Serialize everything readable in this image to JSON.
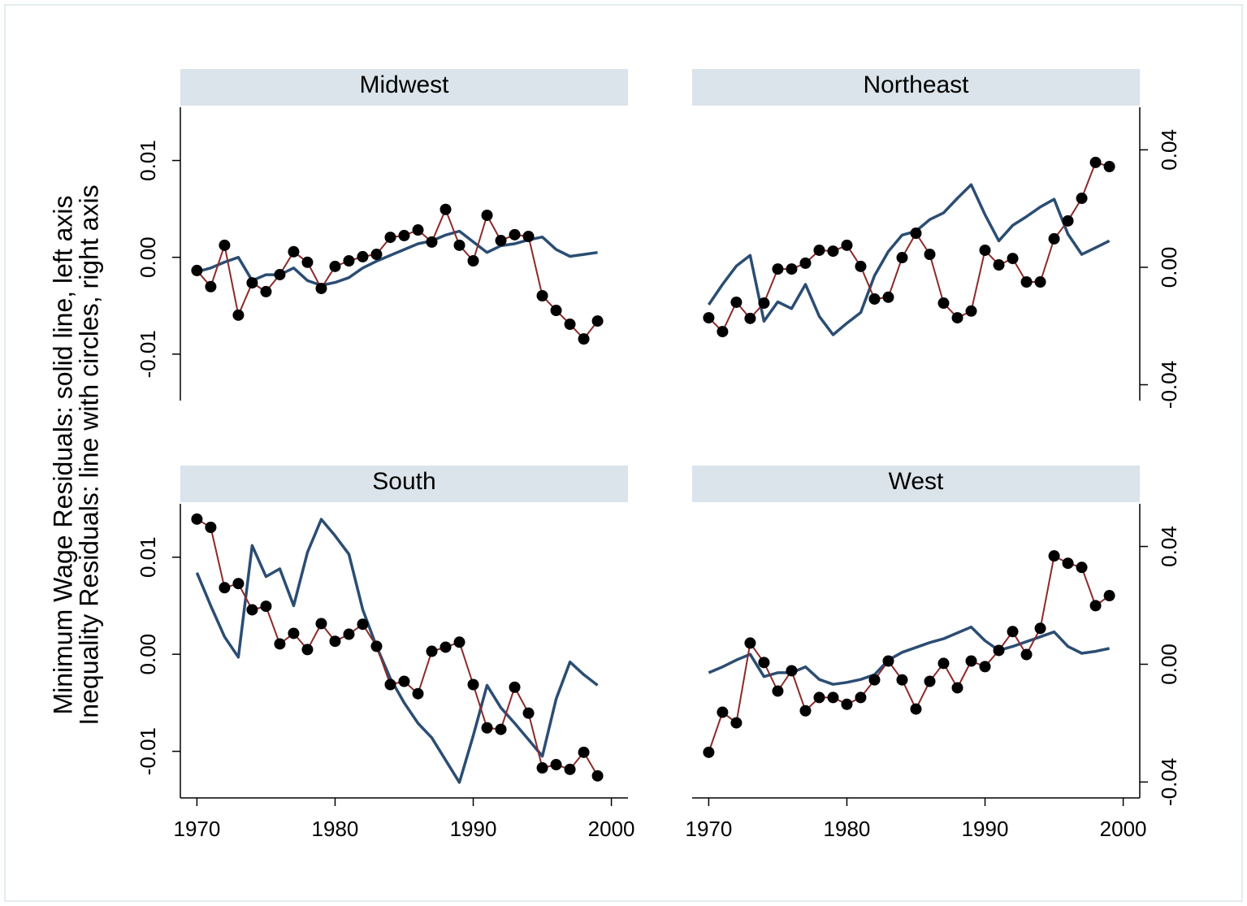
{
  "ylabel": [
    "Minimum Wage Residuals: solid line, left axis",
    "Inequality Residuals: line with circles, right axis"
  ],
  "chart_data": [
    {
      "type": "line",
      "title": "Midwest",
      "x": [
        1970,
        1971,
        1972,
        1973,
        1974,
        1975,
        1976,
        1977,
        1978,
        1979,
        1980,
        1981,
        1982,
        1983,
        1984,
        1985,
        1986,
        1987,
        1988,
        1989,
        1990,
        1991,
        1992,
        1993,
        1994,
        1995,
        1996,
        1997,
        1998,
        1999
      ],
      "xlim": [
        1968.8,
        2001.2
      ],
      "ylim": [
        -0.0148,
        0.0155
      ],
      "y2lim": [
        -0.0454,
        0.0545
      ],
      "yticks": [
        -0.01,
        {
          "value": 0,
          "label": "0.00"
        },
        0.01
      ],
      "series": [
        {
          "color": "#2b4d73",
          "values": [
            -0.0015,
            -0.0011,
            -0.0005,
            0.0,
            -0.0024,
            -0.0018,
            -0.0018,
            -0.0011,
            -0.0024,
            -0.0029,
            -0.0026,
            -0.0021,
            -0.0011,
            -0.0004,
            0.0002,
            0.0008,
            0.0014,
            0.0017,
            0.0023,
            0.0027,
            0.0016,
            0.0005,
            0.0012,
            0.0014,
            0.0018,
            0.0021,
            0.0008,
            0.0001,
            0.0003,
            0.0005
          ]
        },
        {
          "color": "#8b2a2a",
          "marker": "circle",
          "marker_color": "#000000",
          "axis": "y2",
          "values": [
            -0.0011,
            -0.0066,
            0.0075,
            -0.0163,
            -0.0053,
            -0.0083,
            -0.0025,
            0.0053,
            0.0017,
            -0.0072,
            0.0003,
            0.0022,
            0.0036,
            0.0044,
            0.0102,
            0.0108,
            0.0127,
            0.0086,
            0.0197,
            0.0075,
            0.0022,
            0.0177,
            0.0091,
            0.0111,
            0.0105,
            -0.0097,
            -0.0147,
            -0.0194,
            -0.0244,
            -0.0183
          ]
        }
      ]
    },
    {
      "type": "line",
      "title": "Northeast",
      "x": [
        1970,
        1971,
        1972,
        1973,
        1974,
        1975,
        1976,
        1977,
        1978,
        1979,
        1980,
        1981,
        1982,
        1983,
        1984,
        1985,
        1986,
        1987,
        1988,
        1989,
        1990,
        1991,
        1992,
        1993,
        1994,
        1995,
        1996,
        1997,
        1998,
        1999
      ],
      "xlim": [
        1968.8,
        2001.2
      ],
      "ylim": [
        -0.0148,
        0.0155
      ],
      "y2lim": [
        -0.0454,
        0.0545
      ],
      "y2ticks": [
        -0.04,
        {
          "value": 0,
          "label": "0.00"
        },
        0.04
      ],
      "series": [
        {
          "color": "#2b4d73",
          "values": [
            -0.0049,
            -0.0028,
            -0.0009,
            0.0002,
            -0.0066,
            -0.0046,
            -0.0053,
            -0.0028,
            -0.0061,
            -0.008,
            -0.0068,
            -0.0057,
            -0.0019,
            0.0006,
            0.0023,
            0.0027,
            0.0039,
            0.0046,
            0.0061,
            0.0075,
            0.0044,
            0.0017,
            0.0033,
            0.0042,
            0.0052,
            0.006,
            0.0024,
            0.0003,
            0.001,
            0.0017
          ]
        },
        {
          "color": "#8b2a2a",
          "marker": "circle",
          "marker_color": "#000000",
          "axis": "y2",
          "values": [
            -0.0172,
            -0.0219,
            -0.0119,
            -0.0174,
            -0.0122,
            -0.0006,
            -0.0006,
            0.0014,
            0.0058,
            0.0055,
            0.0075,
            0.0003,
            -0.0108,
            -0.0102,
            0.0033,
            0.0116,
            0.0044,
            -0.0122,
            -0.0172,
            -0.0149,
            0.0058,
            0.0008,
            0.003,
            -0.005,
            -0.005,
            0.0097,
            0.0158,
            0.0235,
            0.0357,
            0.0343
          ]
        }
      ]
    },
    {
      "type": "line",
      "title": "South",
      "x": [
        1970,
        1971,
        1972,
        1973,
        1974,
        1975,
        1976,
        1977,
        1978,
        1979,
        1980,
        1981,
        1982,
        1983,
        1984,
        1985,
        1986,
        1987,
        1988,
        1989,
        1990,
        1991,
        1992,
        1993,
        1994,
        1995,
        1996,
        1997,
        1998,
        1999
      ],
      "xlim": [
        1968.8,
        2001.2
      ],
      "ylim": [
        -0.0148,
        0.0155
      ],
      "y2lim": [
        -0.0454,
        0.0545
      ],
      "xticks": [
        1970,
        1980,
        1990,
        2000
      ],
      "yticks": [
        -0.01,
        {
          "value": 0,
          "label": "0.00"
        },
        0.01
      ],
      "series": [
        {
          "color": "#2b4d73",
          "values": [
            0.0084,
            0.005,
            0.0018,
            -0.0003,
            0.0112,
            0.008,
            0.0088,
            0.005,
            0.0105,
            0.0139,
            0.0122,
            0.0103,
            0.0046,
            0.0008,
            -0.0025,
            -0.005,
            -0.0071,
            -0.0086,
            -0.0109,
            -0.0132,
            -0.0084,
            -0.0032,
            -0.0055,
            -0.0071,
            -0.0088,
            -0.0105,
            -0.0046,
            -0.0008,
            -0.0021,
            -0.0032
          ]
        },
        {
          "color": "#8b2a2a",
          "marker": "circle",
          "marker_color": "#000000",
          "axis": "y2",
          "values": [
            0.0493,
            0.0465,
            0.026,
            0.0274,
            0.0185,
            0.0197,
            0.0069,
            0.0105,
            0.005,
            0.0138,
            0.0078,
            0.0102,
            0.0136,
            0.0061,
            -0.0069,
            -0.0058,
            -0.01,
            0.0044,
            0.0058,
            0.0075,
            -0.0069,
            -0.0216,
            -0.0221,
            -0.0078,
            -0.0166,
            -0.0352,
            -0.0341,
            -0.0357,
            -0.0299,
            -0.0379
          ]
        }
      ]
    },
    {
      "type": "line",
      "title": "West",
      "x": [
        1970,
        1971,
        1972,
        1973,
        1974,
        1975,
        1976,
        1977,
        1978,
        1979,
        1980,
        1981,
        1982,
        1983,
        1984,
        1985,
        1986,
        1987,
        1988,
        1989,
        1990,
        1991,
        1992,
        1993,
        1994,
        1995,
        1996,
        1997,
        1998,
        1999
      ],
      "xlim": [
        1968.8,
        2001.2
      ],
      "ylim": [
        -0.0148,
        0.0155
      ],
      "y2lim": [
        -0.0454,
        0.0545
      ],
      "xticks": [
        1970,
        1980,
        1990,
        2000
      ],
      "y2ticks": [
        -0.04,
        {
          "value": 0,
          "label": "0.00"
        },
        0.04
      ],
      "series": [
        {
          "color": "#2b4d73",
          "values": [
            -0.0019,
            -0.0013,
            -0.0006,
            0.0,
            -0.0023,
            -0.0019,
            -0.0019,
            -0.0013,
            -0.0026,
            -0.0031,
            -0.0029,
            -0.0026,
            -0.0021,
            -0.0006,
            0.0002,
            0.0007,
            0.0012,
            0.0016,
            0.0022,
            0.0028,
            0.0014,
            0.0004,
            0.0008,
            0.0013,
            0.0018,
            0.0023,
            0.0008,
            0.0001,
            0.0003,
            0.0006
          ]
        },
        {
          "color": "#8b2a2a",
          "marker": "circle",
          "marker_color": "#000000",
          "axis": "y2",
          "values": [
            -0.0299,
            -0.0163,
            -0.0199,
            0.0072,
            0.0006,
            -0.0091,
            -0.0022,
            -0.0158,
            -0.0113,
            -0.0113,
            -0.0136,
            -0.0113,
            -0.0053,
            0.0011,
            -0.0053,
            -0.0152,
            -0.0058,
            0.0003,
            -0.008,
            0.0011,
            -0.0008,
            0.0047,
            0.0111,
            0.0033,
            0.0122,
            0.0368,
            0.0343,
            0.0329,
            0.0199,
            0.0233
          ]
        }
      ]
    }
  ]
}
